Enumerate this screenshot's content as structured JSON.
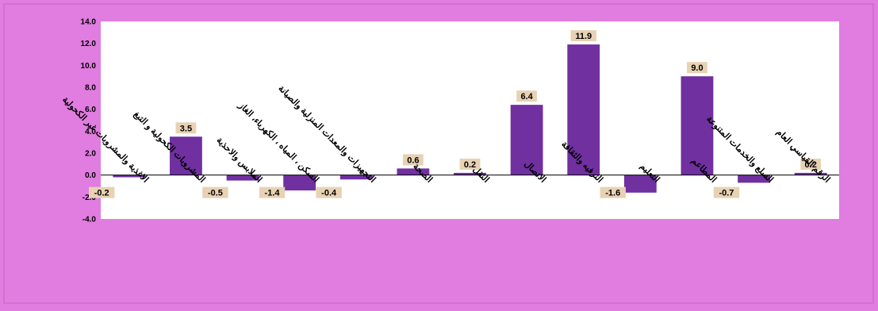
{
  "colors": {
    "background": "#e17ce0",
    "plot_area": "#ffffff",
    "bar": "#7030a0",
    "label_box": "#e8d2b4",
    "axis": "#000000"
  },
  "chart_data": {
    "type": "bar",
    "title": "",
    "xlabel": "",
    "ylabel": "",
    "ylim": [
      -4.0,
      14.0
    ],
    "yticks": [
      "14.0",
      "12.0",
      "10.0",
      "8.0",
      "6.0",
      "4.0",
      "2.0",
      "0.0",
      "-2.0",
      "-4.0"
    ],
    "ytick_values": [
      14,
      12,
      10,
      8,
      6,
      4,
      2,
      0,
      -2,
      -4
    ],
    "grid": false,
    "legend": "none",
    "categories": [
      "الاغذية والمشروبات غير الكحولية",
      "المشروبات الكحولية و التبغ",
      "الملابس والاحذية",
      "السكن ، المياه ، الكهرباء، الغاز",
      "التجهيزات والمعدات المنزلية والصيانة",
      "الصحة",
      "النقل",
      "الاتصال",
      "الترفيه والثقافة",
      "التعليم",
      "المطاعم",
      "السلع والخدمات المتنوعة",
      "الرقم القياسي العام"
    ],
    "values": [
      -0.2,
      3.5,
      -0.5,
      -1.4,
      -0.4,
      0.6,
      0.2,
      6.4,
      11.9,
      -1.6,
      9.0,
      -0.7,
      0.2
    ],
    "value_labels": [
      "-0.2",
      "3.5",
      "-0.5",
      "-1.4",
      "-0.4",
      "0.6",
      "0.2",
      "6.4",
      "11.9",
      "-1.6",
      "9.0",
      "-0.7",
      "0.2"
    ]
  }
}
